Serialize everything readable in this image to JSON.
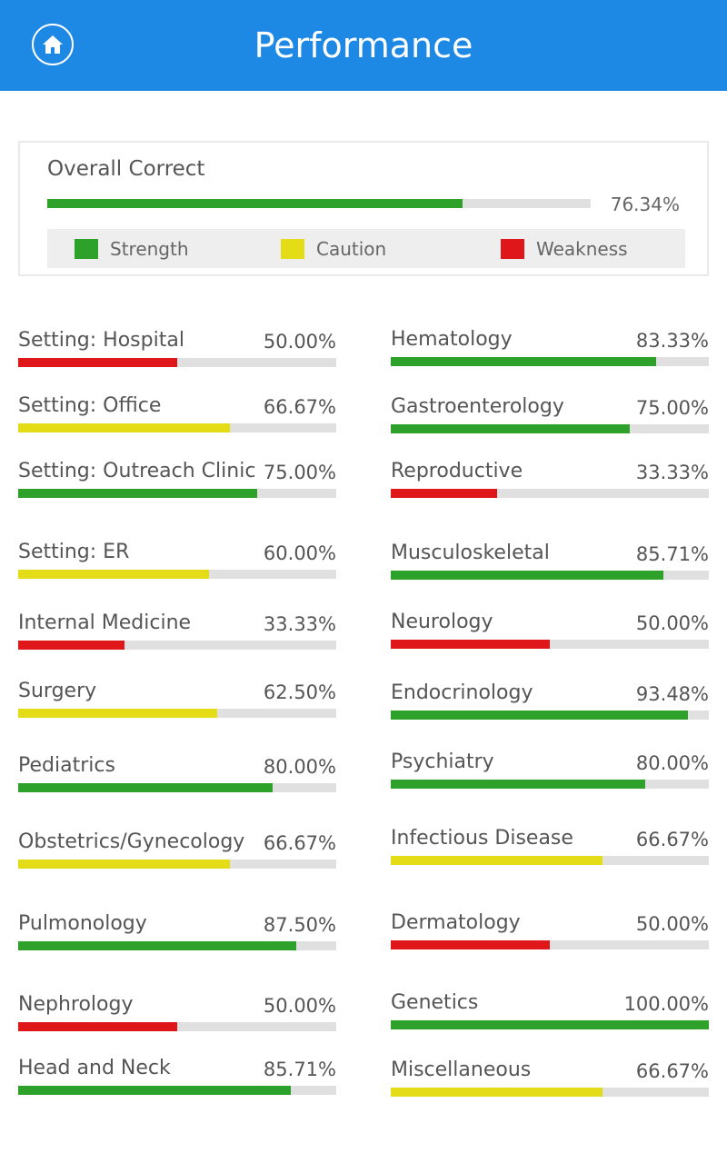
{
  "header": {
    "title": "Performance",
    "home_icon": "home-icon"
  },
  "overall": {
    "title": "Overall Correct",
    "pct_text": "76.34%",
    "value": 0.7634
  },
  "legend": [
    {
      "label": "Strength",
      "color": "#2ea12a"
    },
    {
      "label": "Caution",
      "color": "#e4dc17"
    },
    {
      "label": "Weakness",
      "color": "#e0171a"
    }
  ],
  "colors": {
    "strength": "#2ea12a",
    "caution": "#e4dc17",
    "weakness": "#e0171a",
    "track": "#e0e0e0"
  },
  "left": [
    {
      "name": "Setting: Hospital",
      "pct": "50.00%",
      "value": 0.5,
      "level": "weakness"
    },
    {
      "name": "Setting: Office",
      "pct": "66.67%",
      "value": 0.6667,
      "level": "caution"
    },
    {
      "name": "Setting: Outreach Clinic",
      "pct": "75.00%",
      "value": 0.75,
      "level": "strength"
    },
    {
      "name": "Setting: ER",
      "pct": "60.00%",
      "value": 0.6,
      "level": "caution"
    },
    {
      "name": "Internal Medicine",
      "pct": "33.33%",
      "value": 0.3333,
      "level": "weakness"
    },
    {
      "name": "Surgery",
      "pct": "62.50%",
      "value": 0.625,
      "level": "caution"
    },
    {
      "name": "Pediatrics",
      "pct": "80.00%",
      "value": 0.8,
      "level": "strength"
    },
    {
      "name": "Obstetrics/Gynecology",
      "pct": "66.67%",
      "value": 0.6667,
      "level": "caution"
    },
    {
      "name": "Pulmonology",
      "pct": "87.50%",
      "value": 0.875,
      "level": "strength"
    },
    {
      "name": "Nephrology",
      "pct": "50.00%",
      "value": 0.5,
      "level": "weakness"
    },
    {
      "name": "Head and Neck",
      "pct": "85.71%",
      "value": 0.8571,
      "level": "strength"
    }
  ],
  "right": [
    {
      "name": "Hematology",
      "pct": "83.33%",
      "value": 0.8333,
      "level": "strength"
    },
    {
      "name": "Gastroenterology",
      "pct": "75.00%",
      "value": 0.75,
      "level": "strength"
    },
    {
      "name": "Reproductive",
      "pct": "33.33%",
      "value": 0.3333,
      "level": "weakness"
    },
    {
      "name": "Musculoskeletal",
      "pct": "85.71%",
      "value": 0.8571,
      "level": "strength"
    },
    {
      "name": "Neurology",
      "pct": "50.00%",
      "value": 0.5,
      "level": "weakness"
    },
    {
      "name": "Endocrinology",
      "pct": "93.48%",
      "value": 0.9348,
      "level": "strength"
    },
    {
      "name": "Psychiatry",
      "pct": "80.00%",
      "value": 0.8,
      "level": "strength"
    },
    {
      "name": "Infectious Disease",
      "pct": "66.67%",
      "value": 0.6667,
      "level": "caution"
    },
    {
      "name": "Dermatology",
      "pct": "50.00%",
      "value": 0.5,
      "level": "weakness"
    },
    {
      "name": "Genetics",
      "pct": "100.00%",
      "value": 1.0,
      "level": "strength"
    },
    {
      "name": "Miscellaneous",
      "pct": "66.67%",
      "value": 0.6667,
      "level": "caution"
    }
  ]
}
